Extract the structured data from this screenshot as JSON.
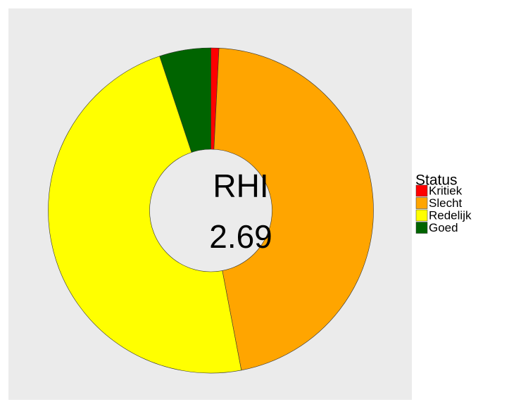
{
  "chart_data": {
    "type": "donut",
    "categories": [
      "Kritiek",
      "Slecht",
      "Redelijk",
      "Goed"
    ],
    "values": [
      0.8,
      46.2,
      47.9,
      5.1
    ],
    "colors": [
      "#ff0000",
      "#ffa500",
      "#ffff00",
      "#006400"
    ],
    "legend_title": "Status",
    "legend": "right",
    "center_label": [
      "RHI",
      "2.69"
    ]
  }
}
